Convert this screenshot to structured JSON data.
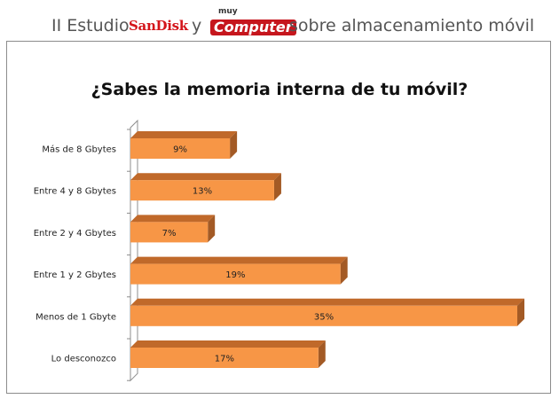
{
  "header": {
    "prefix": "II Estudio",
    "brand1": "SanDisk",
    "connector": "y",
    "brand2_small": "muy",
    "brand2": "Computer",
    "suffix": "sobre almacenamiento móvil"
  },
  "colors": {
    "bar_front": "#f79646",
    "bar_top": "#c0692a",
    "bar_side": "#a35a25",
    "brand_red": "#c6161d"
  },
  "chart_data": {
    "type": "bar",
    "orientation": "horizontal",
    "title": "¿Sabes la memoria interna de tu móvil?",
    "categories": [
      "Más de 8 Gbytes",
      "Entre 4 y 8 Gbytes",
      "Entre 2 y 4 Gbytes",
      "Entre 1 y 2 Gbytes",
      "Menos de 1 Gbyte",
      "Lo desconozco"
    ],
    "values": [
      9,
      13,
      7,
      19,
      35,
      17
    ],
    "data_labels": [
      "9%",
      "13%",
      "7%",
      "19%",
      "35%",
      "17%"
    ],
    "xlim": [
      0,
      35
    ],
    "grid": false,
    "legend": "none",
    "style": "3d"
  }
}
